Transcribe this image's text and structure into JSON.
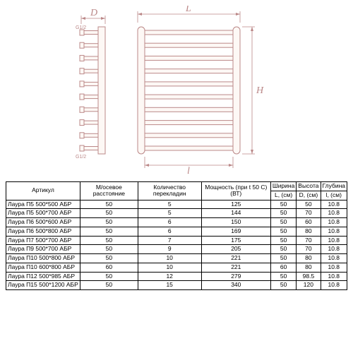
{
  "diagram": {
    "labels": {
      "D": "D",
      "L": "L",
      "H": "H",
      "l": "l"
    },
    "annot": {
      "g12a": "G1/2",
      "g12b": "G1/2"
    },
    "rungs": 10,
    "colors": {
      "line": "#b88",
      "fill": "#fdf8f5",
      "bg": "#ffffff"
    },
    "side_width": 50,
    "front_width": 145,
    "front_height": 180,
    "dim_font": 14
  },
  "table": {
    "columns": [
      "Артикул",
      "М/осевое расстояние",
      "Количество перекладин",
      "Мощность (при t 50 C) (ВТ)",
      "Ширина",
      "Высота",
      "Глубина"
    ],
    "subcolumns": [
      "",
      "",
      "",
      "",
      "L, (см)",
      "D, (см)",
      "l, (см)"
    ],
    "rows": [
      [
        "Лаура П5 500*500 АБР",
        "50",
        "5",
        "125",
        "50",
        "50",
        "10.8"
      ],
      [
        "Лаура П5 500*700 АБР",
        "50",
        "5",
        "144",
        "50",
        "70",
        "10.8"
      ],
      [
        "Лаура П6 500*600 АБР",
        "50",
        "6",
        "150",
        "50",
        "60",
        "10.8"
      ],
      [
        "Лаура П6 500*800 АБР",
        "50",
        "6",
        "169",
        "50",
        "80",
        "10.8"
      ],
      [
        "Лаура П7 500*700 АБР",
        "50",
        "7",
        "175",
        "50",
        "70",
        "10.8"
      ],
      [
        "Лаура П9 500*700 АБР",
        "50",
        "9",
        "205",
        "50",
        "70",
        "10.8"
      ],
      [
        "Лаура П10 500*800 АБР",
        "50",
        "10",
        "221",
        "50",
        "80",
        "10.8"
      ],
      [
        "Лаура П10 600*800 АБР",
        "60",
        "10",
        "221",
        "60",
        "80",
        "10.8"
      ],
      [
        "Лаура П12 500*985 АБР",
        "50",
        "12",
        "279",
        "50",
        "98.5",
        "10.8"
      ],
      [
        "Лаура П15 500*1200 АБР",
        "50",
        "15",
        "340",
        "50",
        "120",
        "10.8"
      ]
    ],
    "header_fontsize": 8.5,
    "cell_fontsize": 8.5,
    "border_color": "#000000"
  }
}
